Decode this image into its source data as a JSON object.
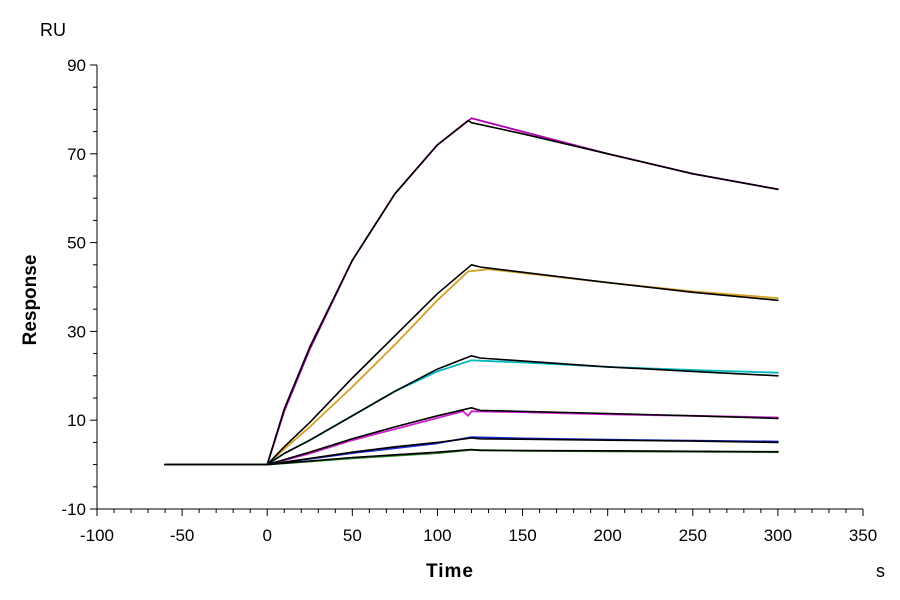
{
  "chart_data": {
    "type": "line",
    "xlabel": "Time",
    "ylabel": "Response",
    "x_unit": "s",
    "y_unit": "RU",
    "xlim": [
      -100,
      350
    ],
    "ylim": [
      -10,
      90
    ],
    "x_ticks": [
      -100,
      -50,
      0,
      50,
      100,
      150,
      200,
      250,
      300,
      350
    ],
    "y_ticks": [
      -10,
      10,
      30,
      50,
      70,
      90
    ],
    "grid": false,
    "series": [
      {
        "color": "#b000b0",
        "role": "measured",
        "points": [
          [
            -60,
            0
          ],
          [
            0,
            0
          ],
          [
            10,
            12
          ],
          [
            25,
            26
          ],
          [
            50,
            46
          ],
          [
            75,
            61
          ],
          [
            100,
            72
          ],
          [
            120,
            78
          ],
          [
            150,
            75
          ],
          [
            200,
            70
          ],
          [
            250,
            65.5
          ],
          [
            300,
            62
          ]
        ]
      },
      {
        "color": "#000000",
        "role": "fit",
        "points": [
          [
            -60,
            0
          ],
          [
            0,
            0
          ],
          [
            10,
            12.5
          ],
          [
            25,
            26.5
          ],
          [
            50,
            46
          ],
          [
            75,
            61
          ],
          [
            100,
            72
          ],
          [
            118,
            77.5
          ],
          [
            120,
            77
          ],
          [
            150,
            74.5
          ],
          [
            200,
            70
          ],
          [
            250,
            65.5
          ],
          [
            300,
            62
          ]
        ]
      },
      {
        "color": "#d4a020",
        "role": "measured",
        "points": [
          [
            -60,
            0
          ],
          [
            0,
            0
          ],
          [
            10,
            3.5
          ],
          [
            25,
            8.5
          ],
          [
            50,
            17.5
          ],
          [
            75,
            27
          ],
          [
            100,
            37
          ],
          [
            118,
            43.5
          ],
          [
            130,
            44
          ],
          [
            200,
            41
          ],
          [
            250,
            39
          ],
          [
            300,
            37.5
          ]
        ]
      },
      {
        "color": "#000000",
        "role": "fit",
        "points": [
          [
            -60,
            0
          ],
          [
            0,
            0
          ],
          [
            10,
            4
          ],
          [
            25,
            9.5
          ],
          [
            50,
            19.5
          ],
          [
            75,
            29
          ],
          [
            100,
            38.5
          ],
          [
            120,
            45
          ],
          [
            125,
            44.5
          ],
          [
            200,
            41
          ],
          [
            250,
            38.8
          ],
          [
            300,
            37
          ]
        ]
      },
      {
        "color": "#00b8c0",
        "role": "measured",
        "points": [
          [
            -60,
            0
          ],
          [
            0,
            0
          ],
          [
            10,
            2.5
          ],
          [
            25,
            5.5
          ],
          [
            50,
            11
          ],
          [
            75,
            16.5
          ],
          [
            100,
            21
          ],
          [
            120,
            23.5
          ],
          [
            150,
            23
          ],
          [
            200,
            22
          ],
          [
            250,
            21.3
          ],
          [
            300,
            20.7
          ]
        ]
      },
      {
        "color": "#000000",
        "role": "fit",
        "points": [
          [
            -60,
            0
          ],
          [
            0,
            0
          ],
          [
            10,
            2.5
          ],
          [
            25,
            5.5
          ],
          [
            50,
            11
          ],
          [
            75,
            16.5
          ],
          [
            100,
            21.5
          ],
          [
            120,
            24.5
          ],
          [
            125,
            24
          ],
          [
            200,
            22
          ],
          [
            250,
            21
          ],
          [
            300,
            20
          ]
        ]
      },
      {
        "color": "#d020d0",
        "role": "measured",
        "points": [
          [
            -60,
            0
          ],
          [
            0,
            0
          ],
          [
            25,
            2.5
          ],
          [
            50,
            5.5
          ],
          [
            75,
            8
          ],
          [
            100,
            10.5
          ],
          [
            115,
            12
          ],
          [
            118,
            11
          ],
          [
            120,
            12
          ],
          [
            150,
            11.8
          ],
          [
            200,
            11.3
          ],
          [
            250,
            11
          ],
          [
            300,
            10.6
          ]
        ]
      },
      {
        "color": "#000000",
        "role": "fit",
        "points": [
          [
            -60,
            0
          ],
          [
            0,
            0
          ],
          [
            25,
            2.8
          ],
          [
            50,
            5.8
          ],
          [
            75,
            8.5
          ],
          [
            100,
            11
          ],
          [
            120,
            12.8
          ],
          [
            125,
            12.2
          ],
          [
            200,
            11.5
          ],
          [
            250,
            11
          ],
          [
            300,
            10.4
          ]
        ]
      },
      {
        "color": "#1a2ad0",
        "role": "measured",
        "points": [
          [
            -60,
            0
          ],
          [
            0,
            0
          ],
          [
            25,
            1.3
          ],
          [
            50,
            2.6
          ],
          [
            75,
            3.7
          ],
          [
            100,
            4.8
          ],
          [
            120,
            6.2
          ],
          [
            150,
            5.9
          ],
          [
            200,
            5.6
          ],
          [
            250,
            5.4
          ],
          [
            300,
            5.2
          ]
        ]
      },
      {
        "color": "#000000",
        "role": "fit",
        "points": [
          [
            -60,
            0
          ],
          [
            0,
            0
          ],
          [
            25,
            1.4
          ],
          [
            50,
            2.8
          ],
          [
            75,
            4
          ],
          [
            100,
            5
          ],
          [
            120,
            6
          ],
          [
            125,
            5.8
          ],
          [
            200,
            5.5
          ],
          [
            250,
            5.3
          ],
          [
            300,
            5
          ]
        ]
      },
      {
        "color": "#208020",
        "role": "measured",
        "points": [
          [
            -60,
            0
          ],
          [
            0,
            0
          ],
          [
            25,
            0.7
          ],
          [
            50,
            1.4
          ],
          [
            75,
            2
          ],
          [
            100,
            2.6
          ],
          [
            120,
            3.3
          ],
          [
            150,
            3.1
          ],
          [
            200,
            3
          ],
          [
            250,
            2.9
          ],
          [
            300,
            2.8
          ]
        ]
      },
      {
        "color": "#000000",
        "role": "fit",
        "points": [
          [
            -60,
            0
          ],
          [
            0,
            0
          ],
          [
            25,
            0.8
          ],
          [
            50,
            1.6
          ],
          [
            75,
            2.2
          ],
          [
            100,
            2.8
          ],
          [
            120,
            3.4
          ],
          [
            125,
            3.2
          ],
          [
            200,
            3.1
          ],
          [
            250,
            3
          ],
          [
            300,
            2.9
          ]
        ]
      }
    ]
  }
}
